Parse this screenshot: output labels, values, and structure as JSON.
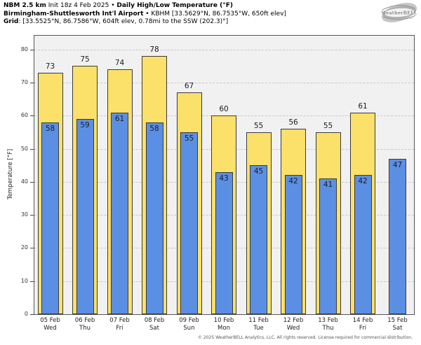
{
  "header": {
    "line1_bold1": "NBM 2.5 km",
    "line1_regular1": " Init 18z 4 Feb 2025 • ",
    "line1_bold2": "Daily High/Low Temperature (°F)",
    "line2_bold": "Birmingham-Shuttlesworth Int'l Airport",
    "line2_regular": " • KBHM [33.5629°N, 86.7535°W, 650ft elev]",
    "line3_bold": "Grid",
    "line3_regular": ": [33.5525°N, 86.7586°W, 604ft elev, 0.78mi to the SSW (202.3)°]"
  },
  "logo": {
    "name": "weatherbell-logo",
    "text": "WeatherBELL",
    "subtext": "Analytics LLC"
  },
  "footer": {
    "copyright": "© 2025 WeatherBELL Analytics, LLC. All rights reserved. License required for commercial distribution."
  },
  "chart_data": {
    "type": "bar",
    "title": "Daily High/Low Temperature (°F)",
    "ylabel": "Temperature [°F]",
    "xlabel": "",
    "categories": [
      {
        "date": "05 Feb",
        "day": "Wed"
      },
      {
        "date": "06 Feb",
        "day": "Thu"
      },
      {
        "date": "07 Feb",
        "day": "Fri"
      },
      {
        "date": "08 Feb",
        "day": "Sat"
      },
      {
        "date": "09 Feb",
        "day": "Sun"
      },
      {
        "date": "10 Feb",
        "day": "Mon"
      },
      {
        "date": "11 Feb",
        "day": "Tue"
      },
      {
        "date": "12 Feb",
        "day": "Wed"
      },
      {
        "date": "13 Feb",
        "day": "Thu"
      },
      {
        "date": "14 Feb",
        "day": "Fri"
      },
      {
        "date": "15 Feb",
        "day": "Sat"
      }
    ],
    "series": [
      {
        "name": "Daily High",
        "color": "#fbe06a",
        "values": [
          73,
          75,
          74,
          78,
          67,
          60,
          55,
          56,
          55,
          61,
          null
        ]
      },
      {
        "name": "Daily Low",
        "color": "#5b8fe3",
        "values": [
          58,
          59,
          61,
          58,
          55,
          43,
          45,
          42,
          41,
          42,
          47
        ]
      }
    ],
    "ylim": [
      0,
      84.2
    ],
    "yticks": [
      0,
      10,
      20,
      30,
      40,
      50,
      60,
      70,
      80
    ],
    "grid": "horizontal-dashed",
    "legend": "none",
    "plot_bg": "#f1f1f1",
    "grid_color": "#c8c8c8",
    "bar_border_color": "#3b3b3b"
  }
}
